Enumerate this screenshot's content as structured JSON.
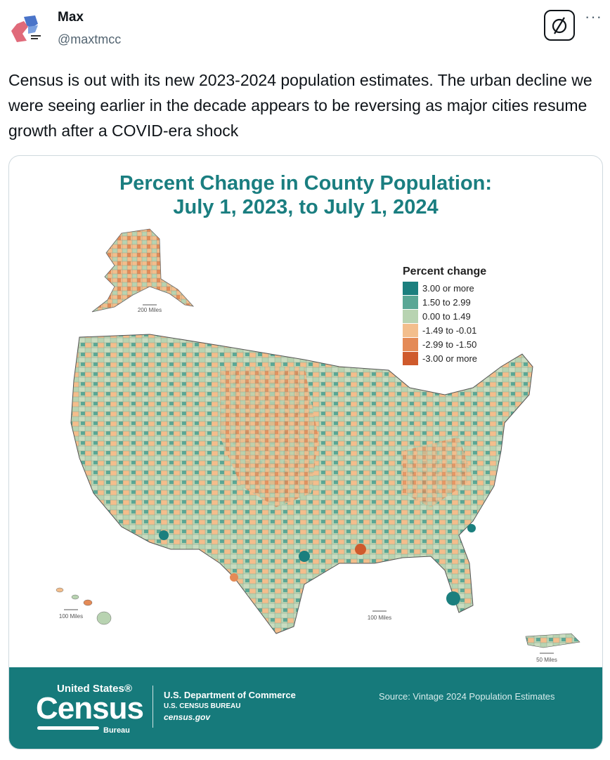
{
  "author": {
    "name": "Max",
    "handle": "@maxtmcc"
  },
  "actions": {
    "grok_icon": "circle-slash-icon",
    "more": "···"
  },
  "tweet": {
    "text": "Census is out with its new 2023-2024 population estimates. The urban decline we were seeing earlier in the decade appears to be reversing as major cities resume growth after a COVID-era shock"
  },
  "map": {
    "title_line1": "Percent Change in County Population:",
    "title_line2": "July 1, 2023, to July 1, 2024",
    "legend_title": "Percent change",
    "legend": [
      {
        "label": "3.00 or more",
        "color": "#1b7f7e"
      },
      {
        "label": "1.50 to 2.99",
        "color": "#5aa795"
      },
      {
        "label": "0.00 to 1.49",
        "color": "#b8d3b1"
      },
      {
        "label": "-1.49 to -0.01",
        "color": "#f3be8c"
      },
      {
        "label": "-2.99 to -1.50",
        "color": "#e48a56"
      },
      {
        "label": "-3.00 or more",
        "color": "#cf5a2c"
      }
    ],
    "scales": {
      "alaska": "200 Miles",
      "hawaii": "100 Miles",
      "florida": "100 Miles",
      "puerto_rico": "50 Miles"
    }
  },
  "footer": {
    "logo_top": "United States®",
    "logo_main": "Census",
    "logo_bureau": "Bureau",
    "dept_line1": "U.S. Department of Commerce",
    "dept_line2": "U.S. CENSUS BUREAU",
    "dept_line3": "census.gov",
    "source": "Source: Vintage 2024 Population Estimates"
  }
}
